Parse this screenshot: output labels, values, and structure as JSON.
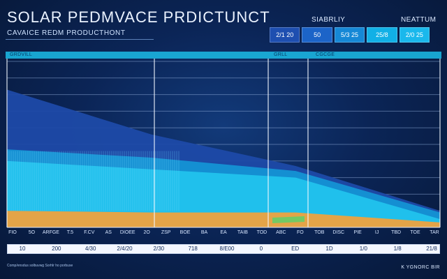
{
  "header": {
    "title": "SOLAR PEDMVACE PRDICTUNCT",
    "subtitle": "CAVAICE REDM PRODUCTHONT",
    "label_left": "SIABRLIY",
    "label_right": "NEATTUM"
  },
  "summary": [
    {
      "text": "2/1 20",
      "color": "#1e4fb0"
    },
    {
      "text": "50",
      "color": "#1c64c8"
    },
    {
      "text": "5/3 25",
      "color": "#1688d6"
    },
    {
      "text": "25/8",
      "color": "#11b0e6"
    },
    {
      "text": "2/0 25",
      "color": "#1ab8ec"
    }
  ],
  "tabs": [
    "GRDVILL",
    "GRLL",
    "CGCGE"
  ],
  "x_ticks": [
    "FIO",
    "5O",
    "ARFGE",
    "T.5",
    "F.CV",
    "AS",
    "DIOEE",
    "2O",
    "ZSP",
    "BOE",
    "BA",
    "EA",
    "TAIB",
    "TOD",
    "ABC",
    "FO",
    "TOB",
    "DISC",
    "PIE",
    "IJ",
    "TBD",
    "TOE",
    "TAR"
  ],
  "values": [
    "10",
    "200",
    "4/30",
    "2/4/20",
    "2/30",
    "718",
    "8/E00",
    "0",
    "ED",
    "1D",
    "1/0",
    "1/8",
    "21/8"
  ],
  "footer": {
    "left": "Comp/ensdus solbuvwg Sorhlr ho porbuse",
    "right": "K YGNORC BIR"
  },
  "colors": {
    "layer_dark_blue": "#1d4aa8",
    "layer_mid_blue": "#1496d6",
    "layer_cyan": "#22c4ee",
    "layer_orange": "#f4a23a",
    "layer_green": "#5fd06a"
  },
  "chart_data": {
    "type": "area",
    "title": "SOLAR PEDMVACE PRDICTUNCT",
    "x": [
      0,
      1,
      2,
      3
    ],
    "series": [
      {
        "values": [
          0.83,
          0.56,
          0.37,
          0.1
        ]
      },
      {
        "values": [
          0.47,
          0.42,
          0.34,
          0.09
        ]
      },
      {
        "values": [
          0.4,
          0.35,
          0.3,
          0.05
        ]
      },
      {
        "values": [
          0.1,
          0.09,
          0.09,
          0.03
        ]
      }
    ],
    "ylim": [
      0,
      1
    ],
    "grid": true
  }
}
